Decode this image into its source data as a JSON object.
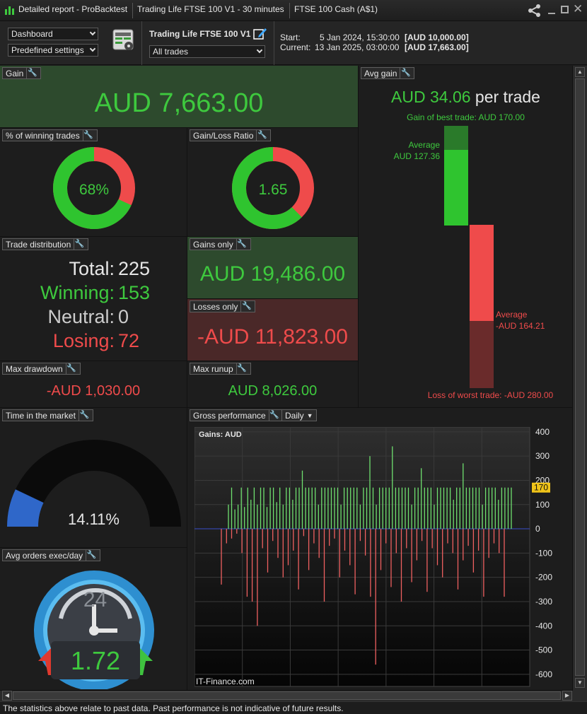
{
  "window": {
    "tabs": [
      "Detailed report - ProBacktest",
      "Trading Life FTSE 100 V1 - 30 minutes",
      "FTSE 100 Cash (A$1)"
    ]
  },
  "toolbar": {
    "view_select": "Dashboard",
    "settings_select": "Predefined settings",
    "system_name": "Trading Life FTSE 100 V1",
    "trades_select": "All trades",
    "start_label": "Start:",
    "start_value": "5 Jan 2024, 15:30:00",
    "start_capital": "[AUD 10,000.00]",
    "current_label": "Current:",
    "current_value": "13 Jan 2025, 03:00:00",
    "current_capital": "[AUD 17,663.00]"
  },
  "panels": {
    "gain": {
      "label": "Gain",
      "value": "AUD 7,663.00"
    },
    "winning": {
      "label": "% of winning trades",
      "value": "68%",
      "fraction": 0.68
    },
    "ratio": {
      "label": "Gain/Loss Ratio",
      "value": "1.65",
      "fraction": 0.623
    },
    "distribution": {
      "label": "Trade distribution",
      "total_label": "Total:",
      "total": "225",
      "winning_label": "Winning:",
      "winning": "153",
      "neutral_label": "Neutral:",
      "neutral": "0",
      "losing_label": "Losing:",
      "losing": "72"
    },
    "gains_only": {
      "label": "Gains only",
      "value": "AUD 19,486.00"
    },
    "losses_only": {
      "label": "Losses only",
      "value": "-AUD 11,823.00"
    },
    "max_drawdown": {
      "label": "Max drawdown",
      "value": "-AUD 1,030.00"
    },
    "max_runup": {
      "label": "Max runup",
      "value": "AUD 8,026.00"
    },
    "avg_gain": {
      "label": "Avg gain",
      "value": "AUD 34.06",
      "suffix": "per trade",
      "best_trade": "Gain of best trade: AUD 170.00",
      "avg_win_label": "Average",
      "avg_win_value": "AUD 127.36",
      "avg_loss_label": "Average",
      "avg_loss_value": "-AUD 164.21",
      "worst_trade": "Loss of worst trade: -AUD 280.00"
    },
    "time_market": {
      "label": "Time in the market",
      "value": "14.11%",
      "fraction": 0.1411
    },
    "avg_orders": {
      "label": "Avg orders exec/day",
      "value": "1.72",
      "clock_text": "24"
    },
    "gross": {
      "label": "Gross performance",
      "period": "Daily"
    }
  },
  "chart_data": {
    "type": "bar",
    "title": "Gains: AUD",
    "watermark": "IT-Finance.com",
    "ylim": [
      -650,
      420
    ],
    "yticks": [
      "400",
      "300",
      "200",
      "100",
      "0",
      "-100",
      "-200",
      "-300",
      "-400",
      "-500",
      "-600"
    ],
    "marker": "170",
    "gains": [
      100,
      170,
      80,
      100,
      170,
      90,
      170,
      120,
      170,
      100,
      170,
      170,
      90,
      170,
      170,
      110,
      170,
      100,
      170,
      170,
      120,
      170,
      170,
      240,
      170,
      170,
      170,
      170,
      100,
      170,
      170,
      170,
      170,
      170,
      170,
      100,
      170,
      170,
      170,
      170,
      170,
      100,
      170,
      170,
      300,
      170,
      100,
      170,
      170,
      170,
      170,
      340,
      170,
      170,
      170,
      170,
      170,
      100,
      170,
      170,
      250,
      170,
      170,
      170,
      100,
      170,
      170,
      170,
      170,
      170,
      120,
      170,
      170,
      270,
      170,
      170,
      170,
      170,
      170,
      100,
      170,
      170,
      170,
      170,
      120,
      170,
      170,
      170,
      170
    ],
    "losses": [
      -230,
      -60,
      -40,
      -20,
      -100,
      -280,
      -300,
      -400,
      -80,
      -180,
      -50,
      -120,
      -200,
      -150,
      -90,
      -250,
      -30,
      -170,
      -60,
      -120,
      -300,
      -70,
      -40,
      -200,
      -90,
      -150,
      -270,
      -50,
      -110,
      -280,
      -560,
      -170,
      -60,
      -240,
      -100,
      -300,
      -80,
      -220,
      -130,
      -50,
      -260,
      -80,
      -150,
      -200,
      -60,
      -100,
      -250,
      -130,
      -70,
      -180,
      -90,
      -280,
      -120,
      -60,
      -100,
      -280
    ]
  }
}
